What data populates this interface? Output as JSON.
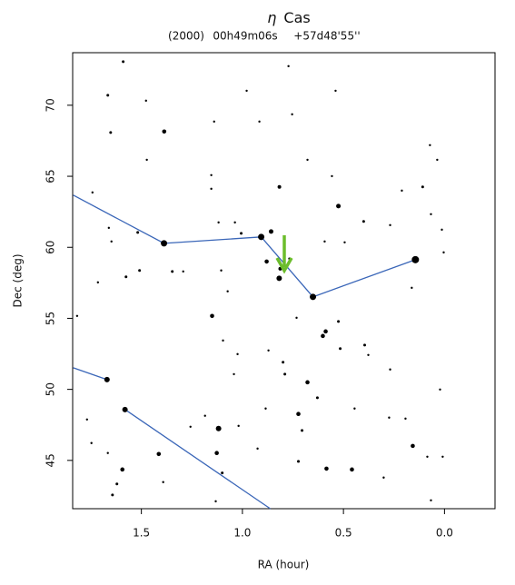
{
  "chart_data": {
    "type": "scatter",
    "title_symbol": "η",
    "title_name": "Cas",
    "subtitle": {
      "epoch": "(2000)",
      "ra": "00h49m06s",
      "dec": "+57d48'55''"
    },
    "xlabel": "RA (hour)",
    "ylabel": "Dec (deg)",
    "xlim": [
      1.84,
      -0.25
    ],
    "ylim": [
      41.6,
      73.7
    ],
    "xticks": [
      1.5,
      {
        "value": 1,
        "label": "1.0"
      },
      0.5,
      {
        "value": 0,
        "label": "0.0"
      }
    ],
    "yticks": [
      45,
      50,
      55,
      60,
      65,
      70
    ],
    "star_color": "#000000",
    "stars": {
      "x": [
        1.59,
        1.666,
        1.477,
        0.979,
        0.772,
        0.539,
        1.14,
        1.387,
        1.652,
        1.473,
        1.154,
        1.154,
        0.916,
        0.754,
        0.678,
        0.817,
        0.557,
        0.525,
        0.4,
        0.269,
        0.072,
        0.036,
        0.108,
        0.067,
        0.013,
        0.004,
        1.742,
        1.661,
        1.648,
        1.518,
        1.509,
        1.715,
        1.576,
        1.293,
        1.118,
        1.037,
        1.006,
        0.858,
        0.88,
        0.813,
        0.768,
        0.593,
        0.494,
        1.105,
        1.073,
        1.15,
        1.096,
        1.024,
        1.042,
        0.871,
        0.799,
        0.732,
        0.79,
        0.678,
        0.629,
        0.723,
        0.705,
        0.588,
        0.602,
        0.525,
        0.516,
        0.395,
        0.377,
        0.269,
        1.818,
        1.769,
        1.747,
        1.666,
        1.594,
        1.621,
        1.643,
        1.414,
        1.257,
        1.127,
        1.1,
        1.019,
        0.925,
        0.885,
        0.723,
        0.584,
        0.458,
        0.445,
        0.274,
        0.193,
        0.157,
        0.301,
        0.085,
        0.009,
        0.022,
        0.067,
        1.392,
        1.132,
        0.162,
        0.211,
        1.347,
        1.185,
        1.388,
        0.907,
        0.651,
        0.144,
        0.818,
        1.581,
        1.67,
        1.118
      ],
      "y": [
        73.07,
        70.7,
        70.32,
        71.02,
        72.75,
        71.02,
        68.85,
        68.15,
        68.08,
        66.16,
        65.08,
        64.12,
        68.85,
        69.36,
        66.16,
        64.25,
        65.01,
        62.9,
        61.82,
        61.56,
        67.19,
        66.16,
        64.25,
        62.33,
        61.24,
        59.64,
        63.86,
        61.37,
        60.41,
        61.05,
        58.37,
        57.53,
        57.92,
        58.3,
        61.75,
        61.75,
        60.98,
        61.11,
        59.0,
        58.49,
        59.2,
        60.41,
        60.35,
        58.37,
        56.9,
        55.17,
        53.44,
        52.48,
        51.07,
        52.74,
        51.91,
        55.04,
        51.07,
        50.5,
        49.41,
        48.27,
        47.11,
        54.08,
        53.76,
        54.78,
        52.87,
        53.12,
        52.42,
        51.4,
        55.17,
        47.88,
        46.22,
        45.52,
        44.36,
        43.34,
        42.57,
        45.45,
        47.37,
        45.52,
        44.12,
        47.43,
        45.83,
        48.65,
        44.93,
        44.42,
        44.36,
        48.65,
        48.01,
        47.94,
        46.02,
        43.79,
        45.26,
        45.26,
        49.99,
        42.19,
        43.47,
        42.12,
        57.15,
        63.99,
        58.3,
        48.14,
        60.28,
        60.73,
        56.51,
        59.13,
        57.82,
        48.58,
        50.69,
        47.24
      ],
      "sizes": [
        1.5,
        1.5,
        1.2,
        1.2,
        1.2,
        1.2,
        1.2,
        2.3,
        1.5,
        1.2,
        1.2,
        1.2,
        1.2,
        1.2,
        1.2,
        2,
        1.2,
        2.5,
        1.5,
        1.2,
        1.2,
        1.2,
        1.5,
        1.2,
        1.2,
        1.2,
        1.2,
        1.2,
        1.2,
        1.5,
        1.5,
        1.2,
        1.5,
        1.2,
        1.2,
        1.2,
        1.5,
        2.5,
        2.3,
        2,
        1.2,
        1.2,
        1.2,
        1.2,
        1.2,
        2.3,
        1.2,
        1.2,
        1.2,
        1.2,
        1.5,
        1.2,
        1.5,
        2.3,
        1.5,
        2.3,
        1.5,
        2.3,
        2.3,
        1.5,
        1.5,
        1.5,
        1.2,
        1.2,
        1.2,
        1.2,
        1.2,
        1.2,
        2.3,
        1.5,
        1.5,
        2.3,
        1.2,
        2.3,
        1.5,
        1.2,
        1.2,
        1.2,
        1.5,
        2.3,
        2.3,
        1.2,
        1.2,
        1.2,
        2.3,
        1.2,
        1.2,
        1.2,
        1.2,
        1.2,
        1.2,
        1.2,
        1.2,
        1.2,
        1.5,
        1.2,
        3.5,
        3.5,
        3.5,
        4,
        3,
        3,
        3,
        3
      ]
    },
    "line_color": "#3a66b8",
    "lines": [
      {
        "x": [
          1.837,
          1.388,
          0.907,
          0.651,
          0.144
        ],
        "y": [
          63.67,
          60.28,
          60.73,
          56.51,
          59.13
        ]
      },
      {
        "x": [
          1.837,
          1.67
        ],
        "y": [
          51.52,
          50.69
        ]
      },
      {
        "x": [
          1.581,
          0.862
        ],
        "y": [
          48.58,
          41.6
        ]
      }
    ]
  }
}
